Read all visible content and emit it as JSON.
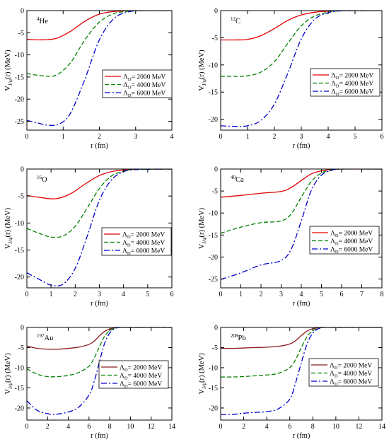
{
  "colors": {
    "ad2000": "#e00000",
    "ad4000": "#008000",
    "ad6000": "#0000cc",
    "ad2000_heavy": "#8b1a1a",
    "axis": "#000000"
  },
  "chart_data": [
    {
      "type": "line",
      "nucleus_mass": "4",
      "nucleus_symbol": "He",
      "xlabel": "r  (fm)",
      "ylabel": "V(r)  (MeV)",
      "ylabel_sub": "J/ψ",
      "xlim": [
        0,
        4
      ],
      "ylim": [
        -27,
        0
      ],
      "xticks": [
        "0",
        "1",
        "2",
        "3",
        "4"
      ],
      "yticks": [
        "0",
        "-5",
        "-10",
        "-15",
        "-20",
        "-25"
      ],
      "legend_position": "bottom-right",
      "series": [
        {
          "name": "ΛD= 2000 MeV",
          "style": "solid",
          "color_key": "ad2000",
          "x": [
            0,
            0.4,
            0.8,
            1.2,
            1.6,
            2.0,
            2.4,
            2.8,
            3.2,
            4.0
          ],
          "y": [
            -6.5,
            -6.6,
            -6.3,
            -4.7,
            -2.4,
            -0.8,
            -0.2,
            -0.05,
            0,
            0
          ]
        },
        {
          "name": "ΛD= 4000 MeV",
          "style": "dashed",
          "color_key": "ad4000",
          "x": [
            0,
            0.4,
            0.8,
            1.2,
            1.6,
            2.0,
            2.4,
            2.8,
            3.2,
            4.0
          ],
          "y": [
            -14.2,
            -14.7,
            -14.6,
            -11.8,
            -6.6,
            -2.6,
            -0.7,
            -0.15,
            0,
            0
          ]
        },
        {
          "name": "ΛD= 6000 MeV",
          "style": "dashdot",
          "color_key": "ad6000",
          "x": [
            0,
            0.3,
            0.6,
            0.9,
            1.2,
            1.6,
            2.0,
            2.4,
            2.8,
            3.2,
            4.0
          ],
          "y": [
            -24.8,
            -25.4,
            -25.9,
            -25.6,
            -23.2,
            -15.5,
            -6.6,
            -1.8,
            -0.3,
            0,
            0
          ]
        }
      ]
    },
    {
      "type": "line",
      "nucleus_mass": "12",
      "nucleus_symbol": "C",
      "xlabel": "r  (fm)",
      "ylabel": "V(r)  (MeV)",
      "ylabel_sub": "J/ψ",
      "xlim": [
        0,
        6
      ],
      "ylim": [
        -22,
        0
      ],
      "xticks": [
        "0",
        "1",
        "2",
        "3",
        "4",
        "5",
        "6"
      ],
      "yticks": [
        "0",
        "-5",
        "-10",
        "-15",
        "-20"
      ],
      "legend_position": "bottom-right",
      "series": [
        {
          "name": "ΛD= 2000 MeV",
          "style": "solid",
          "color_key": "ad2000",
          "x": [
            0,
            0.5,
            1.0,
            1.5,
            2.0,
            2.5,
            3.0,
            3.5,
            4.0,
            4.5,
            6.0
          ],
          "y": [
            -5.4,
            -5.4,
            -5.3,
            -4.6,
            -3.3,
            -1.8,
            -0.8,
            -0.3,
            -0.1,
            0,
            0
          ]
        },
        {
          "name": "ΛD= 4000 MeV",
          "style": "dashed",
          "color_key": "ad4000",
          "x": [
            0,
            0.5,
            1.0,
            1.5,
            2.0,
            2.5,
            3.0,
            3.5,
            4.0,
            4.5,
            6.0
          ],
          "y": [
            -12.1,
            -12.1,
            -12.0,
            -11.3,
            -9.4,
            -6.0,
            -2.8,
            -1.0,
            -0.3,
            -0.05,
            0
          ]
        },
        {
          "name": "ΛD= 6000 MeV",
          "style": "dashdot",
          "color_key": "ad6000",
          "x": [
            0,
            0.5,
            1.0,
            1.5,
            2.0,
            2.5,
            3.0,
            3.5,
            4.0,
            4.5,
            6.0
          ],
          "y": [
            -21.2,
            -21.3,
            -21.2,
            -20.2,
            -17.2,
            -11.5,
            -5.2,
            -1.6,
            -0.4,
            -0.05,
            0
          ]
        }
      ]
    },
    {
      "type": "line",
      "nucleus_mass": "16",
      "nucleus_symbol": "O",
      "xlabel": "r  (fm)",
      "ylabel": "V(r)  (MeV)",
      "ylabel_sub": "J/ψ",
      "xlim": [
        0,
        6
      ],
      "ylim": [
        -22,
        0
      ],
      "xticks": [
        "0",
        "1",
        "2",
        "3",
        "4",
        "5",
        "6"
      ],
      "yticks": [
        "0",
        "-5",
        "-10",
        "-15",
        "-20"
      ],
      "legend_position": "bottom-right",
      "series": [
        {
          "name": "ΛD= 2000 MeV",
          "style": "solid",
          "color_key": "ad2000",
          "x": [
            0,
            0.6,
            1.2,
            1.8,
            2.4,
            3.0,
            3.6,
            4.2,
            4.8,
            6.0
          ],
          "y": [
            -4.9,
            -5.3,
            -5.5,
            -4.6,
            -2.8,
            -1.2,
            -0.4,
            -0.1,
            0,
            0
          ]
        },
        {
          "name": "ΛD= 4000 MeV",
          "style": "dashed",
          "color_key": "ad4000",
          "x": [
            0,
            0.5,
            1.0,
            1.5,
            2.0,
            2.5,
            3.0,
            3.5,
            4.0,
            4.5,
            6.0
          ],
          "y": [
            -11.0,
            -11.9,
            -12.6,
            -12.4,
            -10.6,
            -7.2,
            -3.6,
            -1.3,
            -0.4,
            -0.1,
            0
          ]
        },
        {
          "name": "ΛD= 6000 MeV",
          "style": "dashdot",
          "color_key": "ad6000",
          "x": [
            0,
            0.5,
            1.0,
            1.5,
            2.0,
            2.5,
            3.0,
            3.5,
            4.0,
            4.5,
            6.0
          ],
          "y": [
            -19.2,
            -20.4,
            -21.5,
            -21.3,
            -18.4,
            -12.4,
            -5.8,
            -2.0,
            -0.5,
            -0.1,
            0
          ]
        }
      ]
    },
    {
      "type": "line",
      "nucleus_mass": "40",
      "nucleus_symbol": "Ca",
      "xlabel": "r  (fm)",
      "ylabel": "V(r)  (MeV)",
      "ylabel_sub": "J/ψ",
      "xlim": [
        0,
        8
      ],
      "ylim": [
        -27,
        0
      ],
      "xticks": [
        "0",
        "1",
        "2",
        "3",
        "4",
        "5",
        "6",
        "7",
        "8"
      ],
      "yticks": [
        "0",
        "-5",
        "-10",
        "-15",
        "-20",
        "-25"
      ],
      "legend_position": "bottom-right",
      "series": [
        {
          "name": "ΛD= 2000 MeV",
          "style": "solid",
          "color_key": "ad2000",
          "x": [
            0,
            1.0,
            2.0,
            3.0,
            3.5,
            4.0,
            4.5,
            5.0,
            5.5,
            6.0,
            8.0
          ],
          "y": [
            -6.4,
            -6.0,
            -5.5,
            -5.1,
            -4.2,
            -2.6,
            -1.1,
            -0.4,
            -0.1,
            0,
            0
          ]
        },
        {
          "name": "ΛD= 4000 MeV",
          "style": "dashed",
          "color_key": "ad4000",
          "x": [
            0,
            1.0,
            2.0,
            3.0,
            3.5,
            4.0,
            4.5,
            5.0,
            5.5,
            6.0,
            8.0
          ],
          "y": [
            -14.6,
            -13.2,
            -12.2,
            -11.8,
            -10.2,
            -6.4,
            -2.8,
            -0.9,
            -0.2,
            0,
            0
          ]
        },
        {
          "name": "ΛD= 6000 MeV",
          "style": "dashdot",
          "color_key": "ad6000",
          "x": [
            0,
            1.0,
            2.0,
            3.0,
            3.5,
            4.0,
            4.5,
            5.0,
            5.5,
            6.0,
            8.0
          ],
          "y": [
            -25.1,
            -23.6,
            -21.8,
            -20.8,
            -18.2,
            -11.8,
            -4.8,
            -1.4,
            -0.3,
            0,
            0
          ]
        }
      ]
    },
    {
      "type": "line",
      "nucleus_mass": "197",
      "nucleus_symbol": "Au",
      "xlabel": "r  (fm)",
      "ylabel": "V(r)  (MeV)",
      "ylabel_sub": "J/ψ",
      "xlim": [
        0,
        14
      ],
      "ylim": [
        -23,
        0
      ],
      "xticks": [
        "0",
        "2",
        "4",
        "6",
        "8",
        "10",
        "12",
        "14"
      ],
      "yticks": [
        "0",
        "-5",
        "-10",
        "-15",
        "-20"
      ],
      "legend_position": "bottom-right",
      "series": [
        {
          "name": "ΛD= 2000 MeV",
          "style": "solid",
          "color_key": "ad2000_heavy",
          "x": [
            0,
            1,
            2,
            3,
            4,
            5,
            6,
            6.5,
            7,
            7.5,
            8,
            8.5,
            9,
            10,
            14
          ],
          "y": [
            -4.6,
            -5.2,
            -5.4,
            -5.4,
            -5.2,
            -4.9,
            -4.2,
            -3.4,
            -2.1,
            -1.0,
            -0.4,
            -0.1,
            0,
            0,
            0
          ]
        },
        {
          "name": "ΛD= 4000 MeV",
          "style": "dashed",
          "color_key": "ad4000",
          "x": [
            0,
            1,
            2,
            3,
            4,
            5,
            6,
            6.5,
            7,
            7.5,
            8,
            8.5,
            9,
            10,
            14
          ],
          "y": [
            -10.3,
            -11.6,
            -12.2,
            -12.2,
            -11.9,
            -11.2,
            -9.6,
            -7.6,
            -4.8,
            -2.2,
            -0.8,
            -0.2,
            0,
            0,
            0
          ]
        },
        {
          "name": "ΛD= 6000 MeV",
          "style": "dashdot",
          "color_key": "ad6000",
          "x": [
            0,
            1,
            2,
            2.7,
            4,
            5,
            6,
            6.5,
            7,
            7.5,
            8,
            8.5,
            9,
            10,
            14
          ],
          "y": [
            -18.2,
            -20.6,
            -21.4,
            -21.6,
            -21.0,
            -19.8,
            -16.8,
            -13.4,
            -8.6,
            -4.0,
            -1.4,
            -0.3,
            0,
            0,
            0
          ]
        }
      ]
    },
    {
      "type": "line",
      "nucleus_mass": "208",
      "nucleus_symbol": "Pb",
      "xlabel": "r  (fm)",
      "ylabel": "V(r)  (MeV)",
      "ylabel_sub": "J/ψ",
      "xlim": [
        0,
        14
      ],
      "ylim": [
        -23,
        0
      ],
      "xticks": [
        "0",
        "2",
        "4",
        "6",
        "8",
        "10",
        "12",
        "14"
      ],
      "yticks": [
        "0",
        "-5",
        "-10",
        "-15",
        "-20"
      ],
      "legend_position": "bottom-right",
      "series": [
        {
          "name": "ΛD= 2000 MeV",
          "style": "solid",
          "color_key": "ad2000_heavy",
          "x": [
            0,
            1,
            2,
            3,
            4,
            5,
            6,
            6.5,
            7,
            7.5,
            8,
            8.5,
            9,
            10,
            14
          ],
          "y": [
            -5.2,
            -5.2,
            -5.1,
            -5.0,
            -4.9,
            -4.7,
            -4.1,
            -3.3,
            -2.0,
            -0.9,
            -0.3,
            -0.1,
            0,
            0,
            0
          ]
        },
        {
          "name": "ΛD= 4000 MeV",
          "style": "dashed",
          "color_key": "ad4000",
          "x": [
            0,
            1,
            2,
            3,
            4,
            5,
            6,
            6.5,
            7,
            7.5,
            8,
            8.5,
            9,
            10,
            14
          ],
          "y": [
            -12.3,
            -12.3,
            -12.2,
            -12.0,
            -11.8,
            -11.4,
            -10.0,
            -8.0,
            -5.0,
            -2.3,
            -0.8,
            -0.2,
            0,
            0,
            0
          ]
        },
        {
          "name": "ΛD= 6000 MeV",
          "style": "dashdot",
          "color_key": "ad6000",
          "x": [
            0,
            1,
            2,
            3,
            4,
            5,
            6,
            6.5,
            7,
            7.5,
            8,
            8.5,
            9,
            10,
            14
          ],
          "y": [
            -21.6,
            -21.6,
            -21.3,
            -21.1,
            -20.9,
            -20.2,
            -17.8,
            -13.8,
            -8.8,
            -4.1,
            -1.4,
            -0.3,
            0,
            0,
            0
          ]
        }
      ]
    }
  ]
}
